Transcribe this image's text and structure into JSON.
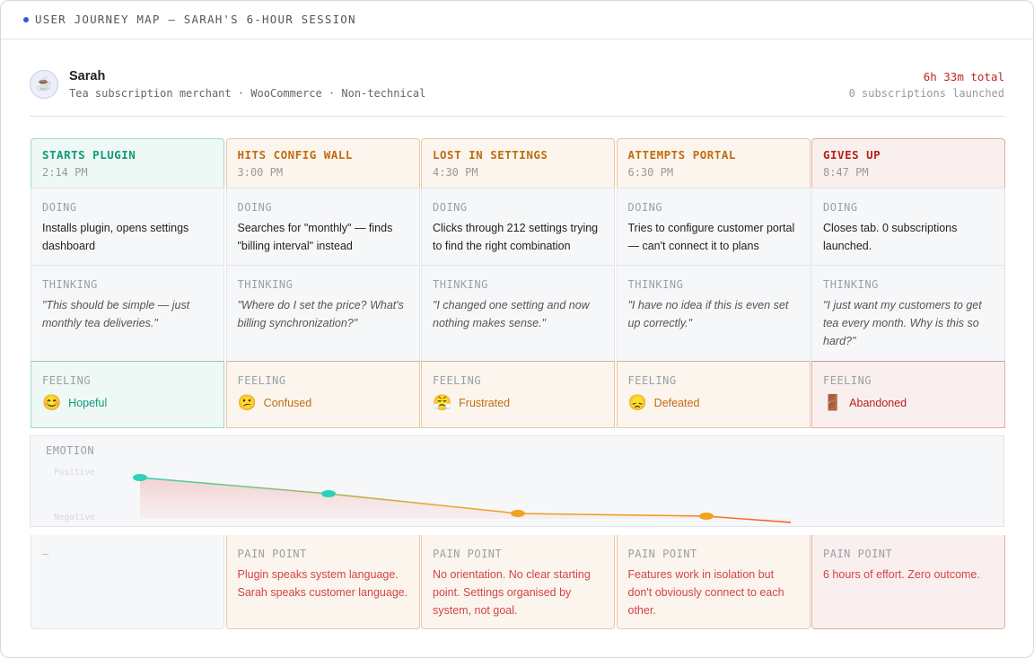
{
  "header": {
    "title": "USER JOURNEY MAP — SARAH'S 6-HOUR SESSION"
  },
  "persona": {
    "avatar": "☕",
    "name": "Sarah",
    "description": "Tea subscription merchant · WooCommerce · Non-technical",
    "total": "6h 33m total",
    "outcome": "0 subscriptions launched"
  },
  "labels": {
    "doing": "DOING",
    "thinking": "THINKING",
    "feeling": "FEELING",
    "pain": "PAIN POINT"
  },
  "stages": [
    {
      "title": "STARTS PLUGIN",
      "time": "2:14 PM",
      "color": "#0f9a78",
      "doing": "Installs plugin, opens settings dashboard",
      "thinking": "\"This should be simple — just monthly tea deliveries.\"",
      "emoji": "😊",
      "feeling": "Hopeful",
      "pain": "—"
    },
    {
      "title": "HITS CONFIG WALL",
      "time": "3:00 PM",
      "color": "#c06d10",
      "doing": "Searches for \"monthly\" — finds \"billing interval\" instead",
      "thinking": "\"Where do I set the price? What's billing synchronization?\"",
      "emoji": "😕",
      "feeling": "Confused",
      "pain": "Plugin speaks system language. Sarah speaks customer language."
    },
    {
      "title": "LOST IN SETTINGS",
      "time": "4:30 PM",
      "color": "#c06d10",
      "doing": "Clicks through 212 settings trying to find the right combination",
      "thinking": "\"I changed one setting and now nothing makes sense.\"",
      "emoji": "😤",
      "feeling": "Frustrated",
      "pain": "No orientation. No clear starting point. Settings organised by system, not goal."
    },
    {
      "title": "ATTEMPTS PORTAL",
      "time": "6:30 PM",
      "color": "#c06d10",
      "doing": "Tries to configure customer portal — can't connect it to plans",
      "thinking": "\"I have no idea if this is even set up correctly.\"",
      "emoji": "😞",
      "feeling": "Defeated",
      "pain": "Features work in isolation but don't obviously connect to each other."
    },
    {
      "title": "GIVES UP",
      "time": "8:47 PM",
      "color": "#b42318",
      "doing": "Closes tab. 0 subscriptions launched.",
      "thinking": "\"I just want my customers to get tea every month. Why is this so hard?\"",
      "emoji": "🚪",
      "feeling": "Abandoned",
      "pain": "6 hours of effort. Zero outcome."
    }
  ],
  "emotion": {
    "label": "EMOTION",
    "ylim": [
      -0.16,
      1.24
    ],
    "yticks": [
      {
        "value": 1,
        "label": "Positive"
      },
      {
        "value": 0,
        "label": "Negative"
      }
    ],
    "values": [
      0.88,
      0.52,
      0.08,
      0.02,
      -0.12
    ]
  }
}
